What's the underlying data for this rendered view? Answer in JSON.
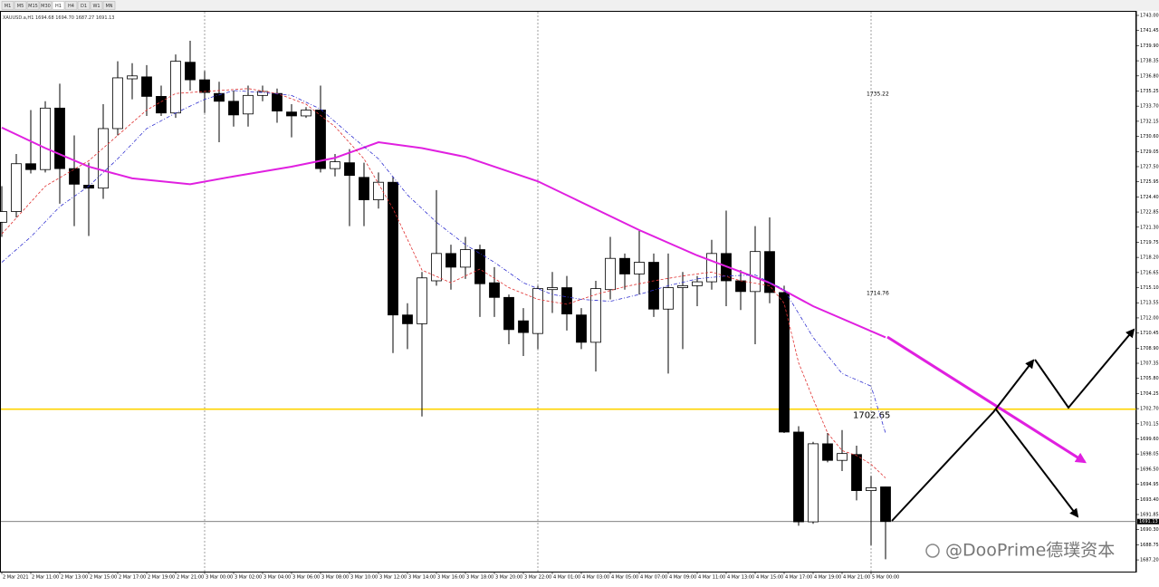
{
  "toolbar": {
    "timeframes": [
      "M1",
      "M5",
      "M15",
      "M30",
      "H1",
      "H4",
      "D1",
      "W1",
      "MN"
    ],
    "active": 4
  },
  "watermark": "@DooPrime德璞资本",
  "chart_data": {
    "type": "candlestick",
    "info": {
      "symbol": "XAUUSD.a,H1",
      "quote": [
        "1694.68",
        "1694.70",
        "1687.27",
        "1691.13"
      ]
    },
    "categories": [
      "2 Mar 2021",
      null,
      "2 Mar 11:00",
      null,
      "2 Mar 13:00",
      null,
      "2 Mar 15:00",
      null,
      "2 Mar 17:00",
      null,
      "2 Mar 19:00",
      null,
      "2 Mar 21:00",
      null,
      "3 Mar 00:00",
      null,
      "3 Mar 02:00",
      null,
      "3 Mar 04:00",
      null,
      "3 Mar 06:00",
      null,
      "3 Mar 08:00",
      null,
      "3 Mar 10:00",
      null,
      "3 Mar 12:00",
      null,
      "3 Mar 14:00",
      null,
      "3 Mar 16:00",
      null,
      "3 Mar 18:00",
      null,
      "3 Mar 20:00",
      null,
      "3 Mar 22:00",
      null,
      "4 Mar 01:00",
      null,
      "4 Mar 03:00",
      null,
      "4 Mar 05:00",
      null,
      "4 Mar 07:00",
      null,
      "4 Mar 09:00",
      null,
      "4 Mar 11:00",
      null,
      "4 Mar 13:00",
      null,
      "4 Mar 15:00",
      null,
      "4 Mar 17:00",
      null,
      "4 Mar 19:00",
      null,
      "4 Mar 21:00",
      null,
      "5 Mar 00:00",
      null
    ],
    "ohlc": {
      "open": [
        1721.8,
        1722.9,
        1727.8,
        1727.2,
        1733.5,
        1727.3,
        1725.6,
        1725.3,
        1731.4,
        1736.5,
        1736.7,
        1734.7,
        1733.0,
        1738.2,
        1736.4,
        1735.0,
        1734.2,
        1732.9,
        1734.8,
        1735.0,
        1733.1,
        1732.7,
        1733.3,
        1727.3,
        1727.9,
        1726.4,
        1724.1,
        1725.9,
        1712.3,
        1711.4,
        1715.8,
        1718.6,
        1717.2,
        1719.0,
        1715.6,
        1714.1,
        1711.7,
        1710.4,
        1714.9,
        1715.1,
        1712.3,
        1709.5,
        1714.9,
        1718.1,
        1716.5,
        1717.7,
        1712.9,
        1715.1,
        1715.3,
        1715.7,
        1718.6,
        1715.8,
        1714.7,
        1718.8,
        1714.6,
        1700.3,
        1691.1,
        1699.1,
        1697.4,
        1698.0,
        1694.3,
        1694.68
      ],
      "high": [
        1725.5,
        1728.8,
        1733.3,
        1734.2,
        1736.0,
        1730.7,
        1727.9,
        1733.9,
        1738.3,
        1738.1,
        1737.9,
        1735.8,
        1739.0,
        1740.4,
        1737.3,
        1736.2,
        1735.3,
        1735.8,
        1735.8,
        1735.5,
        1733.9,
        1733.6,
        1735.8,
        1728.8,
        1729.3,
        1727.9,
        1726.9,
        1726.5,
        1713.5,
        1716.7,
        1725.1,
        1719.5,
        1720.3,
        1719.5,
        1717.2,
        1714.4,
        1713.0,
        1715.3,
        1716.7,
        1716.3,
        1713.0,
        1715.8,
        1720.3,
        1718.6,
        1720.9,
        1718.6,
        1718.6,
        1716.7,
        1716.3,
        1720.0,
        1723.0,
        1716.9,
        1721.4,
        1722.3,
        1715.3,
        1700.9,
        1699.3,
        1700.2,
        1700.5,
        1698.9,
        1695.8,
        1694.7
      ],
      "low": [
        1720.3,
        1722.3,
        1726.8,
        1726.9,
        1723.7,
        1721.4,
        1720.4,
        1724.2,
        1730.7,
        1734.4,
        1732.7,
        1732.7,
        1732.5,
        1735.3,
        1733.0,
        1730.0,
        1731.6,
        1731.6,
        1734.2,
        1732.0,
        1730.5,
        1732.5,
        1726.9,
        1726.5,
        1721.4,
        1721.4,
        1723.2,
        1708.4,
        1708.8,
        1701.9,
        1715.3,
        1714.9,
        1716.0,
        1712.1,
        1712.1,
        1709.3,
        1708.1,
        1708.8,
        1712.5,
        1710.7,
        1708.8,
        1706.5,
        1713.9,
        1714.9,
        1714.4,
        1712.1,
        1706.3,
        1708.8,
        1713.2,
        1714.9,
        1713.2,
        1712.8,
        1709.3,
        1713.5,
        1700.2,
        1690.7,
        1690.9,
        1697.2,
        1696.3,
        1693.3,
        1688.7,
        1687.27
      ],
      "close": [
        1722.9,
        1727.8,
        1727.2,
        1733.5,
        1727.3,
        1725.7,
        1725.3,
        1731.4,
        1736.6,
        1736.8,
        1734.7,
        1733.0,
        1738.3,
        1736.4,
        1735.1,
        1734.2,
        1732.8,
        1734.8,
        1735.2,
        1733.2,
        1732.7,
        1733.3,
        1727.3,
        1728.0,
        1726.6,
        1724.1,
        1725.9,
        1712.3,
        1711.4,
        1716.1,
        1718.6,
        1717.2,
        1719.0,
        1715.5,
        1714.1,
        1710.8,
        1710.5,
        1715.0,
        1715.1,
        1712.4,
        1709.5,
        1715.0,
        1718.1,
        1716.5,
        1717.7,
        1712.9,
        1715.1,
        1715.3,
        1715.7,
        1718.6,
        1715.8,
        1714.7,
        1718.8,
        1714.6,
        1700.3,
        1691.1,
        1699.1,
        1697.4,
        1698.1,
        1694.3,
        1694.6,
        1691.13
      ]
    },
    "up_color": "#ffffff",
    "down_color": "#000000",
    "overlays": [
      {
        "color": "#e020e0",
        "dash": "solid",
        "x": [
          0,
          3,
          6,
          9,
          13,
          16,
          20,
          23,
          26,
          29,
          32,
          37,
          44,
          48,
          53,
          56,
          61
        ],
        "values": [
          1731.5,
          1729.4,
          1727.5,
          1726.3,
          1725.7,
          1726.5,
          1727.5,
          1728.4,
          1730.0,
          1729.4,
          1728.5,
          1726.0,
          1721.0,
          1718.4,
          1715.6,
          1713.2,
          1710.0
        ]
      },
      {
        "color": "#e03030",
        "dash": "dashed",
        "x": [
          0,
          3,
          6,
          8,
          10,
          12,
          15,
          17,
          19,
          21,
          23,
          25,
          27,
          29,
          31,
          33,
          35,
          37,
          39,
          41,
          43,
          45,
          47,
          49,
          51,
          53,
          54,
          55,
          56,
          57,
          58,
          59,
          60,
          61
        ],
        "values": [
          1720.6,
          1725.5,
          1728.1,
          1730.7,
          1733.3,
          1735.0,
          1735.3,
          1735.5,
          1735.0,
          1733.9,
          1731.6,
          1728.3,
          1723.2,
          1716.9,
          1715.6,
          1717.0,
          1715.1,
          1713.9,
          1713.4,
          1714.4,
          1715.2,
          1715.8,
          1716.3,
          1716.7,
          1715.8,
          1715.3,
          1713.5,
          1707.4,
          1703.7,
          1700.2,
          1698.4,
          1697.9,
          1697.0,
          1695.6
        ]
      },
      {
        "color": "#3030d0",
        "dash": "dashdot",
        "x": [
          0,
          2,
          4,
          6,
          8,
          10,
          12,
          14,
          16,
          18,
          20,
          22,
          24,
          26,
          28,
          30,
          32,
          34,
          36,
          38,
          40,
          42,
          44,
          46,
          48,
          50,
          52,
          54,
          56,
          58,
          60,
          61
        ],
        "values": [
          1717.7,
          1720.3,
          1723.4,
          1725.5,
          1728.3,
          1731.4,
          1733.0,
          1734.4,
          1735.3,
          1735.1,
          1734.8,
          1733.4,
          1730.8,
          1728.3,
          1724.6,
          1721.8,
          1719.5,
          1717.7,
          1715.6,
          1714.4,
          1713.9,
          1713.7,
          1714.4,
          1715.3,
          1716.0,
          1716.3,
          1716.4,
          1714.9,
          1710.0,
          1706.3,
          1705.0,
          1700.2
        ]
      }
    ],
    "hline": {
      "value": 1702.65,
      "color": "#ffd400"
    },
    "levels": [
      1735.22,
      1714.76
    ],
    "ylim": [
      1686.0,
      1743.0
    ],
    "yticks": [
      {
        "value": 1743.0,
        "label": "1743.00"
      },
      1741.45,
      {
        "value": 1739.9,
        "label": "1739.90"
      },
      1738.35,
      {
        "value": 1736.8,
        "label": "1736.80"
      },
      1735.25,
      {
        "value": 1733.7,
        "label": "1733.70"
      },
      1732.15,
      {
        "value": 1730.6,
        "label": "1730.60"
      },
      1729.05,
      {
        "value": 1727.5,
        "label": "1727.50"
      },
      1725.95,
      {
        "value": 1724.4,
        "label": "1724.40"
      },
      1722.85,
      {
        "value": 1721.3,
        "label": "1721.30"
      },
      1719.75,
      {
        "value": 1718.2,
        "label": "1718.20"
      },
      1716.65,
      {
        "value": 1715.1,
        "label": "1715.10"
      },
      1713.55,
      {
        "value": 1712.0,
        "label": "1712.00"
      },
      1710.45,
      {
        "value": 1708.9,
        "label": "1708.90"
      },
      1707.35,
      {
        "value": 1705.8,
        "label": "1705.80"
      },
      1704.25,
      {
        "value": 1702.7,
        "label": "1702.70"
      },
      1701.15,
      {
        "value": 1699.6,
        "label": "1699.60"
      },
      1698.05,
      {
        "value": 1696.5,
        "label": "1696.50"
      },
      1694.95,
      {
        "value": 1693.4,
        "label": "1693.40"
      },
      1691.85,
      {
        "value": 1690.3,
        "label": "1690.30"
      },
      1688.75,
      {
        "value": 1687.2,
        "label": "1687.20"
      }
    ]
  }
}
